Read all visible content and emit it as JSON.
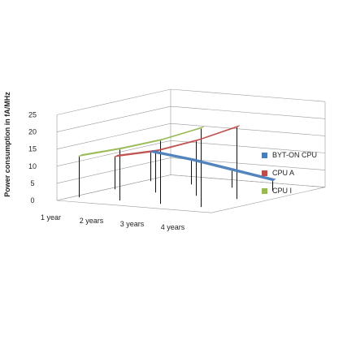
{
  "chart_data": {
    "type": "line",
    "style": "3d",
    "categories": [
      "1 year",
      "2 years",
      "3 years",
      "4 years"
    ],
    "ylabel": "Power consumption  in fA/MHz",
    "ylim": [
      0,
      25
    ],
    "yticks": [
      0,
      5,
      10,
      15,
      20,
      25
    ],
    "grid": true,
    "legend_position": "right",
    "series": [
      {
        "name": "BYT-ON CPU",
        "values": [
          8.5,
          7.0,
          5.0,
          3.0
        ],
        "color": "#4a7ebb"
      },
      {
        "name": "CPU A",
        "values": [
          9.5,
          12.0,
          16.0,
          21.0
        ],
        "color": "#be4b48"
      },
      {
        "name": "CPU I",
        "values": [
          12.0,
          15.0,
          18.5,
          23.0
        ],
        "color": "#98b954"
      }
    ]
  }
}
